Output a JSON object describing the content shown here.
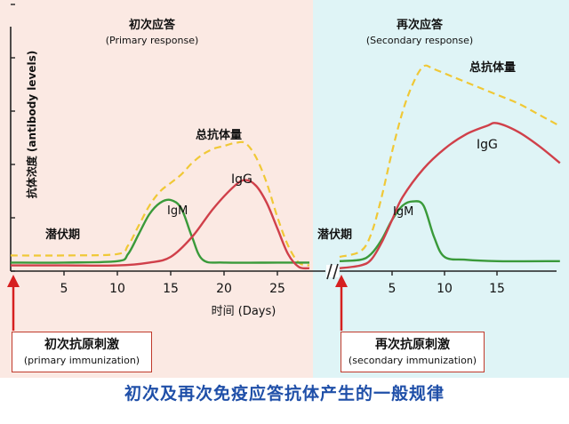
{
  "ylabel": "抗体浓度 (antibody levels)",
  "xlabel": "时间 (Days)",
  "caption": "初次及再次免疫应答抗体产生的一般规律",
  "primary": {
    "title": "初次应答",
    "subtitle": "(Primary response)",
    "latent": "潜伏期",
    "igm": "IgM",
    "igg": "IgG",
    "total": "总抗体量",
    "box_title": "初次抗原刺激",
    "box_sub": "(primary immunization)"
  },
  "secondary": {
    "title": "再次应答",
    "subtitle": "(Secondary response)",
    "latent": "潜伏期",
    "igm": "IgM",
    "igg": "IgG",
    "total": "总抗体量",
    "box_title": "再次抗原刺激",
    "box_sub": "(secondary immunization)"
  },
  "colors": {
    "primary_bg": "#fbe9e3",
    "secondary_bg": "#dff4f6",
    "igm": "#3a9a3a",
    "igg": "#d0404a",
    "total": "#f0c836",
    "arrow": "#d62020",
    "caption": "#1f4fa8"
  },
  "chart_data": {
    "type": "line",
    "xlabel": "时间 (Days)",
    "ylabel": "抗体浓度 (antibody levels)",
    "y_ticks_labeled": false,
    "axis_break_between_panels": true,
    "panels": [
      {
        "name": "初次应答 (Primary response)",
        "x_ticks": [
          5,
          10,
          15,
          20,
          25
        ],
        "xlim": [
          0,
          28
        ],
        "series": [
          {
            "name": "IgM",
            "x": [
              0,
              5,
              10,
              11,
              12,
              13,
              14,
              15,
              16,
              17,
              18,
              20,
              25,
              28
            ],
            "y": [
              0.3,
              0.3,
              0.35,
              0.6,
              1.3,
              2.0,
              2.4,
              2.5,
              2.2,
              1.2,
              0.4,
              0.3,
              0.3,
              0.3
            ]
          },
          {
            "name": "IgG",
            "x": [
              0,
              5,
              10,
              13,
              15,
              17,
              19,
              21,
              22,
              23,
              24,
              25,
              26,
              27,
              28
            ],
            "y": [
              0.2,
              0.2,
              0.2,
              0.3,
              0.5,
              1.2,
              2.2,
              3.0,
              3.2,
              3.0,
              2.4,
              1.5,
              0.6,
              0.15,
              0.1
            ]
          },
          {
            "name": "总抗体量",
            "x": [
              0,
              5,
              10,
              11,
              12,
              13,
              14,
              15,
              16,
              17,
              18,
              19,
              20,
              21,
              22,
              23,
              24,
              25,
              26,
              27,
              28
            ],
            "y": [
              0.55,
              0.55,
              0.6,
              0.9,
              1.6,
              2.3,
              2.8,
              3.1,
              3.4,
              3.8,
              4.1,
              4.3,
              4.4,
              4.5,
              4.5,
              4.0,
              3.1,
              1.9,
              0.9,
              0.3,
              0.2
            ]
          }
        ]
      },
      {
        "name": "再次应答 (Secondary response)",
        "x_ticks": [
          5,
          10,
          15
        ],
        "xlim": [
          0,
          21
        ],
        "series": [
          {
            "name": "IgM",
            "x": [
              0,
              2,
              3,
              4,
              5,
              6,
              7,
              8,
              9,
              10,
              12,
              15,
              21
            ],
            "y": [
              0.35,
              0.4,
              0.6,
              1.1,
              1.8,
              2.3,
              2.45,
              2.3,
              1.2,
              0.5,
              0.4,
              0.35,
              0.35
            ]
          },
          {
            "name": "IgG",
            "x": [
              0,
              2,
              3,
              4,
              5,
              6,
              8,
              10,
              12,
              14,
              15,
              17,
              19,
              21
            ],
            "y": [
              0.1,
              0.2,
              0.4,
              1.0,
              1.8,
              2.6,
              3.6,
              4.3,
              4.8,
              5.1,
              5.2,
              4.9,
              4.4,
              3.8
            ]
          },
          {
            "name": "总抗体量",
            "x": [
              0,
              2,
              3,
              4,
              5,
              6,
              7,
              8,
              9,
              11,
              13,
              15,
              17,
              19,
              21
            ],
            "y": [
              0.5,
              0.7,
              1.3,
              2.6,
              4.2,
              5.6,
              6.6,
              7.2,
              7.1,
              6.8,
              6.5,
              6.2,
              5.9,
              5.5,
              5.1
            ]
          }
        ]
      }
    ]
  }
}
